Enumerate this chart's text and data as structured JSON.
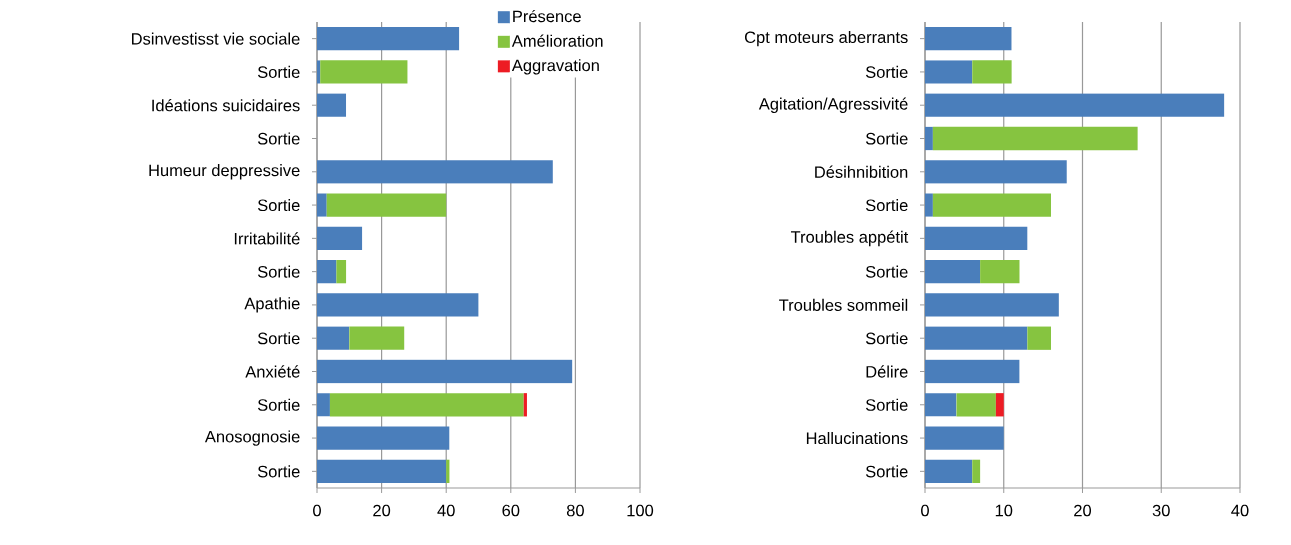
{
  "chart_data": [
    {
      "type": "bar",
      "orientation": "horizontal",
      "stacked": true,
      "categories": [
        "Dsinvestisst vie sociale",
        "Sortie",
        "Idéations suicidaires",
        "Sortie",
        "Humeur deppressive",
        "Sortie",
        "Irritabilité",
        "Sortie",
        "Apathie",
        "Sortie",
        "Anxiété",
        "Sortie",
        "Anosognosie",
        "Sortie"
      ],
      "series": [
        {
          "name": "Présence",
          "color": "#4a7ebb",
          "values": [
            44,
            1,
            9,
            null,
            73,
            3,
            14,
            6,
            50,
            10,
            79,
            4,
            41,
            40
          ]
        },
        {
          "name": "Amélioration",
          "color": "#86c440",
          "values": [
            null,
            27,
            null,
            null,
            null,
            37,
            null,
            3,
            null,
            17,
            null,
            60,
            null,
            1
          ]
        },
        {
          "name": "Aggravation",
          "color": "#ed1c24",
          "values": [
            null,
            null,
            null,
            null,
            null,
            null,
            null,
            null,
            null,
            null,
            null,
            1,
            null,
            null
          ]
        }
      ],
      "xlim": [
        0,
        100
      ],
      "xticks": [
        0,
        20,
        40,
        60,
        80,
        100
      ],
      "grid": "x",
      "legend": "top right"
    },
    {
      "type": "bar",
      "orientation": "horizontal",
      "stacked": true,
      "categories": [
        "Cpt moteurs aberrants",
        "Sortie",
        "Agitation/Agressivité",
        "Sortie",
        "Désihnibition",
        "Sortie",
        "Troubles appétit",
        "Sortie",
        "Troubles sommeil",
        "Sortie",
        "Délire",
        "Sortie",
        "Hallucinations",
        "Sortie"
      ],
      "series": [
        {
          "color": "#4a7ebb",
          "values": [
            11,
            6,
            38,
            1,
            18,
            1,
            13,
            7,
            17,
            13,
            12,
            4,
            10,
            6
          ]
        },
        {
          "color": "#86c440",
          "values": [
            null,
            5,
            null,
            26,
            null,
            15,
            null,
            5,
            null,
            3,
            null,
            5,
            null,
            1
          ]
        },
        {
          "color": "#ed1c24",
          "values": [
            null,
            null,
            null,
            null,
            null,
            null,
            null,
            null,
            null,
            null,
            null,
            1,
            null,
            null
          ]
        }
      ],
      "xlim": [
        0,
        40
      ],
      "xticks": [
        0,
        10,
        20,
        30,
        40
      ],
      "grid": "x"
    }
  ]
}
